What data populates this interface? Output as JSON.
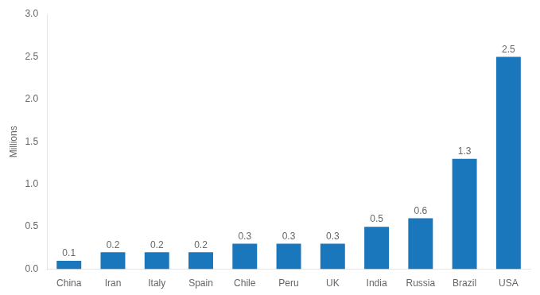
{
  "chart_data": {
    "type": "bar",
    "categories": [
      "China",
      "Iran",
      "Italy",
      "Spain",
      "Chile",
      "Peru",
      "UK",
      "India",
      "Russia",
      "Brazil",
      "USA"
    ],
    "values": [
      0.1,
      0.2,
      0.2,
      0.2,
      0.3,
      0.3,
      0.3,
      0.5,
      0.6,
      1.3,
      2.5
    ],
    "color": "#1b77bc",
    "ylabel": "Millions",
    "ylim": [
      0,
      3.0
    ],
    "yticks": [
      {
        "value": 0.0,
        "label": "0.0"
      },
      0.5,
      {
        "value": 1.0,
        "label": "1.0"
      },
      1.5,
      {
        "value": 2.0,
        "label": "2.0"
      },
      2.5,
      {
        "value": 3.0,
        "label": "3.0"
      }
    ],
    "grid": false,
    "data_labels": true
  }
}
